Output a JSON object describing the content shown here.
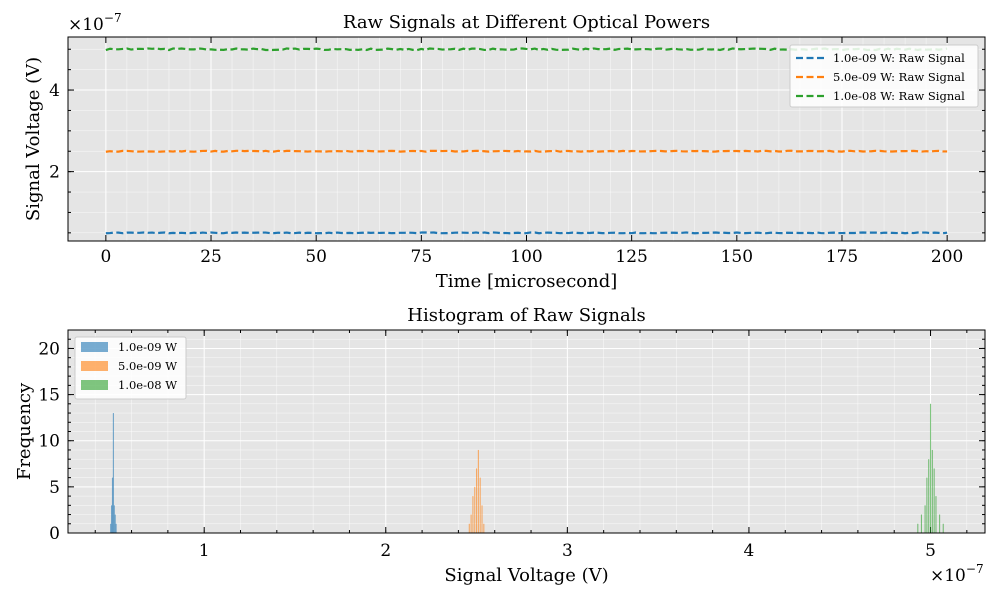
{
  "chart_data": [
    {
      "type": "line",
      "title": "Raw Signals at Different Optical Powers",
      "xlabel": "Time [microsecond]",
      "ylabel": "Signal Voltage (V)",
      "y_scale_label": "×10",
      "y_scale_exp": "−7",
      "xlim": [
        -9,
        209
      ],
      "ylim": [
        0.3,
        5.3
      ],
      "x_ticks": [
        "0",
        "25",
        "50",
        "75",
        "100",
        "125",
        "150",
        "175",
        "200"
      ],
      "y_ticks": [
        "2",
        "4"
      ],
      "grid": true,
      "legend_position": "top-right",
      "series": [
        {
          "name": "1.0e-09 W: Raw Signal",
          "color": "#1f77b4",
          "base": 0.5,
          "spread": 0.01
        },
        {
          "name": "5.0e-09 W: Raw Signal",
          "color": "#ff7f0e",
          "base": 2.5,
          "spread": 0.012
        },
        {
          "name": "1.0e-08 W: Raw Signal",
          "color": "#2ca02c",
          "base": 5.0,
          "spread": 0.02
        }
      ],
      "x_start": 0,
      "x_end": 200
    },
    {
      "type": "histogram",
      "title": "Histogram of Raw Signals",
      "xlabel": "Signal Voltage (V)",
      "ylabel": "Frequency",
      "x_scale_label": "×10",
      "x_scale_exp": "−7",
      "xlim": [
        0.25,
        5.3
      ],
      "ylim": [
        0,
        22
      ],
      "x_ticks": [
        "1",
        "2",
        "3",
        "4",
        "5"
      ],
      "y_ticks": [
        "0",
        "5",
        "10",
        "15",
        "20"
      ],
      "grid": true,
      "legend_position": "top-left",
      "series": [
        {
          "name": "1.0e-09 W",
          "color": "#1f77b4",
          "bins": [
            [
              0.485,
              1
            ],
            [
              0.49,
              3
            ],
            [
              0.495,
              6
            ],
            [
              0.5,
              13
            ],
            [
              0.505,
              3
            ],
            [
              0.51,
              2
            ],
            [
              0.515,
              1
            ]
          ]
        },
        {
          "name": "5.0e-09 W",
          "color": "#ff7f0e",
          "bins": [
            [
              2.46,
              1
            ],
            [
              2.47,
              2
            ],
            [
              2.48,
              4
            ],
            [
              2.49,
              5
            ],
            [
              2.5,
              7
            ],
            [
              2.51,
              9
            ],
            [
              2.52,
              6
            ],
            [
              2.53,
              3
            ],
            [
              2.54,
              1
            ]
          ]
        },
        {
          "name": "1.0e-08 W",
          "color": "#2ca02c",
          "bins": [
            [
              4.93,
              1
            ],
            [
              4.95,
              2
            ],
            [
              4.97,
              3
            ],
            [
              4.98,
              6
            ],
            [
              4.99,
              8
            ],
            [
              5.0,
              14
            ],
            [
              5.01,
              9
            ],
            [
              5.02,
              7
            ],
            [
              5.03,
              4
            ],
            [
              5.05,
              2
            ],
            [
              5.07,
              1
            ]
          ]
        }
      ]
    }
  ]
}
